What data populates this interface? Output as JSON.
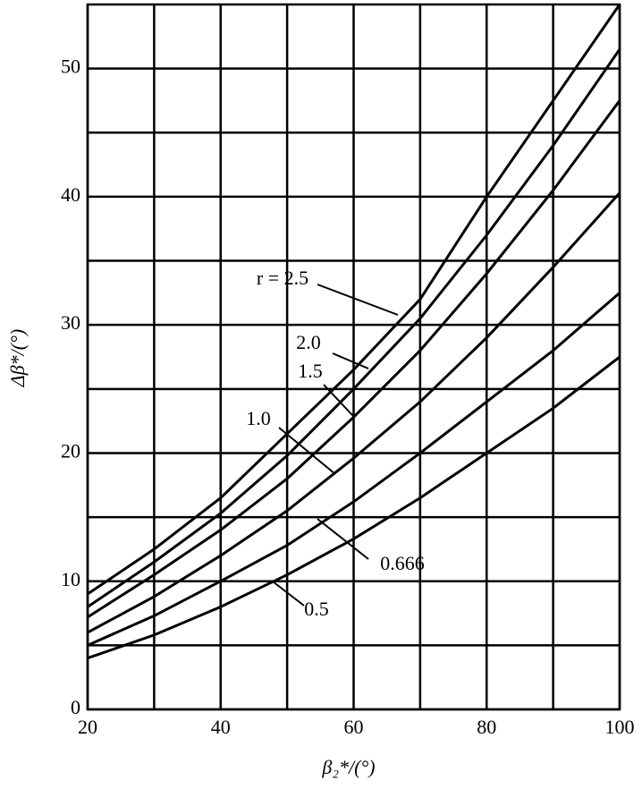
{
  "chart_data": {
    "type": "line",
    "x_label": "β₂*/(°)",
    "y_label": "Δβ*/(°)",
    "x": [
      20,
      30,
      40,
      50,
      60,
      70,
      80,
      90,
      100
    ],
    "xlim": [
      20,
      100
    ],
    "xticks": [
      20,
      40,
      60,
      80,
      100
    ],
    "minor_xticks": [
      30,
      50,
      70,
      90
    ],
    "ylim": [
      0,
      55
    ],
    "yticks": [
      0,
      10,
      20,
      30,
      40,
      50
    ],
    "minor_yticks": [
      5,
      15,
      25,
      35,
      45
    ],
    "grid": true,
    "series": [
      {
        "name": "r = 2.5",
        "color": "#000000",
        "values": [
          9,
          12.5,
          16.5,
          21.5,
          26.5,
          32,
          40,
          47.5,
          55
        ]
      },
      {
        "name": "2.0",
        "color": "#000000",
        "values": [
          8,
          11.5,
          15.3,
          19.8,
          25,
          30.5,
          37,
          44,
          51.5
        ]
      },
      {
        "name": "1.5",
        "color": "#000000",
        "values": [
          7.2,
          10.5,
          14,
          18,
          22.8,
          28,
          34,
          40.5,
          47.5
        ]
      },
      {
        "name": "1.0",
        "color": "#000000",
        "values": [
          6,
          8.8,
          12,
          15.5,
          19.6,
          24,
          29,
          34.5,
          40.3
        ]
      },
      {
        "name": "0.666",
        "color": "#000000",
        "values": [
          5,
          7.3,
          10,
          12.8,
          16.2,
          20,
          24,
          28,
          32.5
        ]
      },
      {
        "name": "0.5",
        "color": "#000000",
        "values": [
          4,
          5.8,
          8,
          10.5,
          13.3,
          16.5,
          20,
          23.5,
          27.5
        ]
      }
    ]
  }
}
